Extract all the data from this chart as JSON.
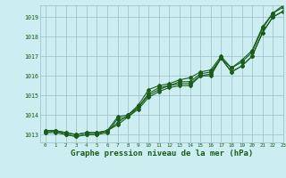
{
  "background_color": "#cceef0",
  "plot_bg_color": "#cceef0",
  "grid_color": "#99bbcc",
  "line_color": "#1a5c1a",
  "xlabel": "Graphe pression niveau de la mer (hPa)",
  "xlabel_fontsize": 6.5,
  "xlim": [
    -0.5,
    23
  ],
  "ylim": [
    1012.6,
    1019.6
  ],
  "yticks": [
    1013,
    1014,
    1015,
    1016,
    1017,
    1018,
    1019
  ],
  "xticks": [
    0,
    1,
    2,
    3,
    4,
    5,
    6,
    7,
    8,
    9,
    10,
    11,
    12,
    13,
    14,
    15,
    16,
    17,
    18,
    19,
    20,
    21,
    22,
    23
  ],
  "hours": [
    0,
    1,
    2,
    3,
    4,
    5,
    6,
    7,
    8,
    9,
    10,
    11,
    12,
    13,
    14,
    15,
    16,
    17,
    18,
    19,
    20,
    21,
    22,
    23
  ],
  "series": [
    [
      1013.1,
      1013.2,
      1013.0,
      1012.9,
      1013.0,
      1013.0,
      1013.2,
      1013.9,
      1014.0,
      1014.4,
      1015.0,
      1015.3,
      1015.5,
      1015.6,
      1015.6,
      1016.0,
      1016.0,
      1016.9,
      1016.2,
      1016.5,
      1017.0,
      1018.2,
      1019.0,
      1019.3
    ],
    [
      1013.1,
      1013.1,
      1013.0,
      1012.9,
      1013.0,
      1013.0,
      1013.1,
      1013.8,
      1013.9,
      1014.3,
      1014.9,
      1015.2,
      1015.4,
      1015.5,
      1015.5,
      1016.0,
      1016.1,
      1016.9,
      1016.2,
      1016.5,
      1017.0,
      1018.2,
      1019.0,
      1019.3
    ],
    [
      1013.2,
      1013.2,
      1013.1,
      1013.0,
      1013.1,
      1013.1,
      1013.2,
      1013.5,
      1013.9,
      1014.4,
      1015.1,
      1015.4,
      1015.5,
      1015.7,
      1015.7,
      1016.1,
      1016.2,
      1016.9,
      1016.4,
      1016.7,
      1017.2,
      1018.4,
      1019.2,
      1019.5
    ],
    [
      1013.2,
      1013.2,
      1013.1,
      1013.0,
      1013.1,
      1013.1,
      1013.2,
      1013.6,
      1014.0,
      1014.5,
      1015.3,
      1015.5,
      1015.6,
      1015.8,
      1015.9,
      1016.2,
      1016.3,
      1017.0,
      1016.4,
      1016.8,
      1017.3,
      1018.5,
      1019.2,
      1019.6
    ]
  ],
  "marker": "D",
  "markersize": 2.0,
  "linewidth": 0.8
}
